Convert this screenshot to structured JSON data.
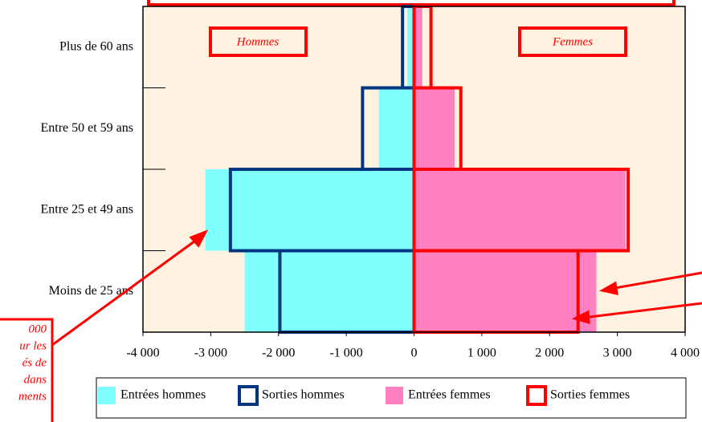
{
  "chart_data": {
    "type": "bar",
    "orientation": "horizontal",
    "categories": [
      "Plus de 60 ans",
      "Entre 50 et 59 ans",
      "Entre 25 et 49 ans",
      "Moins de 25 ans"
    ],
    "series": [
      {
        "name": "Entrées hommes",
        "color": "#80ffff",
        "style": "fill",
        "values": [
          -100,
          -520,
          -3080,
          -2500
        ]
      },
      {
        "name": "Sorties hommes",
        "color": "#003580",
        "style": "outline",
        "values": [
          -170,
          -760,
          -2710,
          -1980
        ]
      },
      {
        "name": "Entrées femmes",
        "color": "#ff80c0",
        "style": "fill",
        "values": [
          120,
          600,
          3120,
          2690
        ]
      },
      {
        "name": "Sorties femmes",
        "color": "#ff0000",
        "style": "outline",
        "values": [
          250,
          690,
          3160,
          2420
        ]
      }
    ],
    "xlim": [
      -4000,
      4000
    ],
    "xticks": [
      {
        "value": -4000,
        "label": "-4 000"
      },
      {
        "value": -3000,
        "label": "-3 000"
      },
      {
        "value": -2000,
        "label": "-2 000"
      },
      {
        "value": -1000,
        "label": "-1 000"
      },
      0,
      {
        "value": 1000,
        "label": "1 000"
      },
      {
        "value": 2000,
        "label": "2 000"
      },
      {
        "value": 3000,
        "label": "3 000"
      },
      {
        "value": 4000,
        "label": "4 000"
      }
    ],
    "annotations": [
      "Hommes",
      "Femmes"
    ],
    "note_lines": [
      "000",
      "ur les",
      "és de",
      "dans",
      "ments"
    ],
    "plot_background": "#fff2e0"
  }
}
